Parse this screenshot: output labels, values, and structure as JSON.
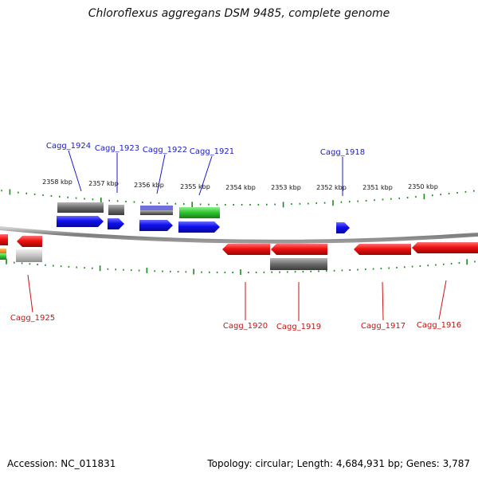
{
  "title": "Chloroflexus aggregans DSM 9485, complete genome",
  "footer": {
    "accession": "Accession: NC_011831",
    "summary": "Topology: circular; Length: 4,684,931 bp; Genes: 3,787"
  },
  "colors": {
    "forward_gene": "#1010ee",
    "reverse_gene": "#ee1111",
    "forward_label": "#1a1acc",
    "reverse_label": "#cc1111",
    "backbone": "#8a8a8a",
    "ticks": "#1a8a1a"
  },
  "scale_labels": [
    "2358 kbp",
    "2357 kbp",
    "2356 kbp",
    "2355 kbp",
    "2354 kbp",
    "2353 kbp",
    "2352 kbp",
    "2351 kbp",
    "2350 kbp"
  ],
  "forward_genes": [
    "Cagg_1924",
    "Cagg_1923",
    "Cagg_1922",
    "Cagg_1921",
    "Cagg_1918"
  ],
  "reverse_genes": [
    "Cagg_1925",
    "Cagg_1920",
    "Cagg_1919",
    "Cagg_1917",
    "Cagg_1916"
  ]
}
